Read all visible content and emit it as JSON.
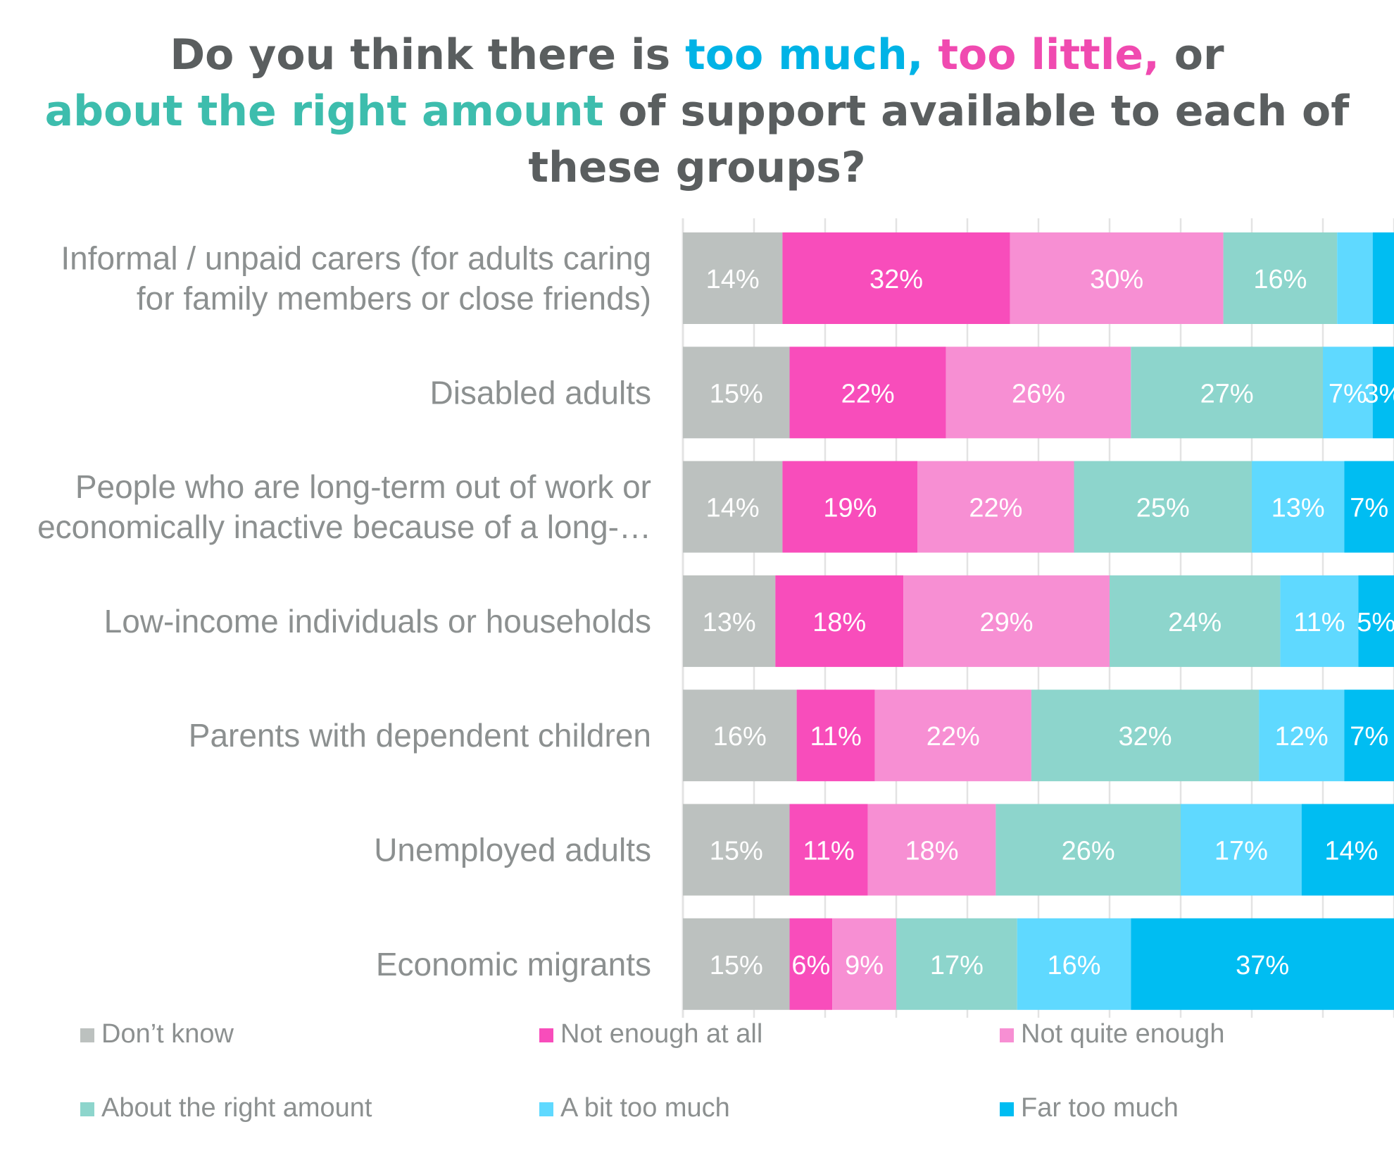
{
  "title": {
    "part1": "Do you think there is ",
    "too_much": "too much,",
    "part2": " ",
    "too_little": "too little,",
    "part3": " or ",
    "about_right": "about the right amount",
    "part4": " of support available to each of these groups?"
  },
  "chart_data": {
    "type": "bar",
    "orientation": "horizontal",
    "stacked": true,
    "title": "Do you think there is too much, too little, or about the right amount of support available to each of these groups?",
    "categories": [
      [
        "Informal / unpaid carers (for adults caring",
        "for family members or close friends)"
      ],
      [
        "Disabled adults"
      ],
      [
        "People who are long-term out of work or",
        "economically inactive because of a long-…"
      ],
      [
        "Low-income individuals or households"
      ],
      [
        "Parents with dependent children"
      ],
      [
        "Unemployed adults"
      ],
      [
        "Economic migrants"
      ]
    ],
    "series": [
      {
        "name": "Don’t know",
        "color": "#bcc1bf",
        "values": [
          14,
          15,
          14,
          13,
          16,
          15,
          15
        ],
        "labels": [
          true,
          true,
          true,
          true,
          true,
          true,
          true
        ]
      },
      {
        "name": "Not enough at all",
        "color": "#f84dbb",
        "values": [
          32,
          22,
          19,
          18,
          11,
          11,
          6
        ],
        "labels": [
          true,
          true,
          true,
          true,
          true,
          true,
          true
        ]
      },
      {
        "name": "Not quite enough",
        "color": "#f78fd3",
        "values": [
          30,
          26,
          22,
          29,
          22,
          18,
          9
        ],
        "labels": [
          true,
          true,
          true,
          true,
          true,
          true,
          true
        ]
      },
      {
        "name": "About the right amount",
        "color": "#8dd5cc",
        "values": [
          16,
          27,
          25,
          24,
          32,
          26,
          17
        ],
        "labels": [
          true,
          true,
          true,
          true,
          true,
          true,
          true
        ]
      },
      {
        "name": "A bit too much",
        "color": "#5fd9ff",
        "values": [
          5,
          7,
          13,
          11,
          12,
          17,
          16
        ],
        "labels": [
          false,
          true,
          true,
          true,
          true,
          true,
          true
        ]
      },
      {
        "name": "Far too much",
        "color": "#00bdf2",
        "values": [
          3,
          3,
          7,
          5,
          7,
          14,
          37
        ],
        "labels": [
          false,
          true,
          true,
          true,
          true,
          true,
          true
        ]
      }
    ],
    "xlim": [
      0,
      100
    ],
    "grid": true,
    "legend_position": "bottom"
  }
}
